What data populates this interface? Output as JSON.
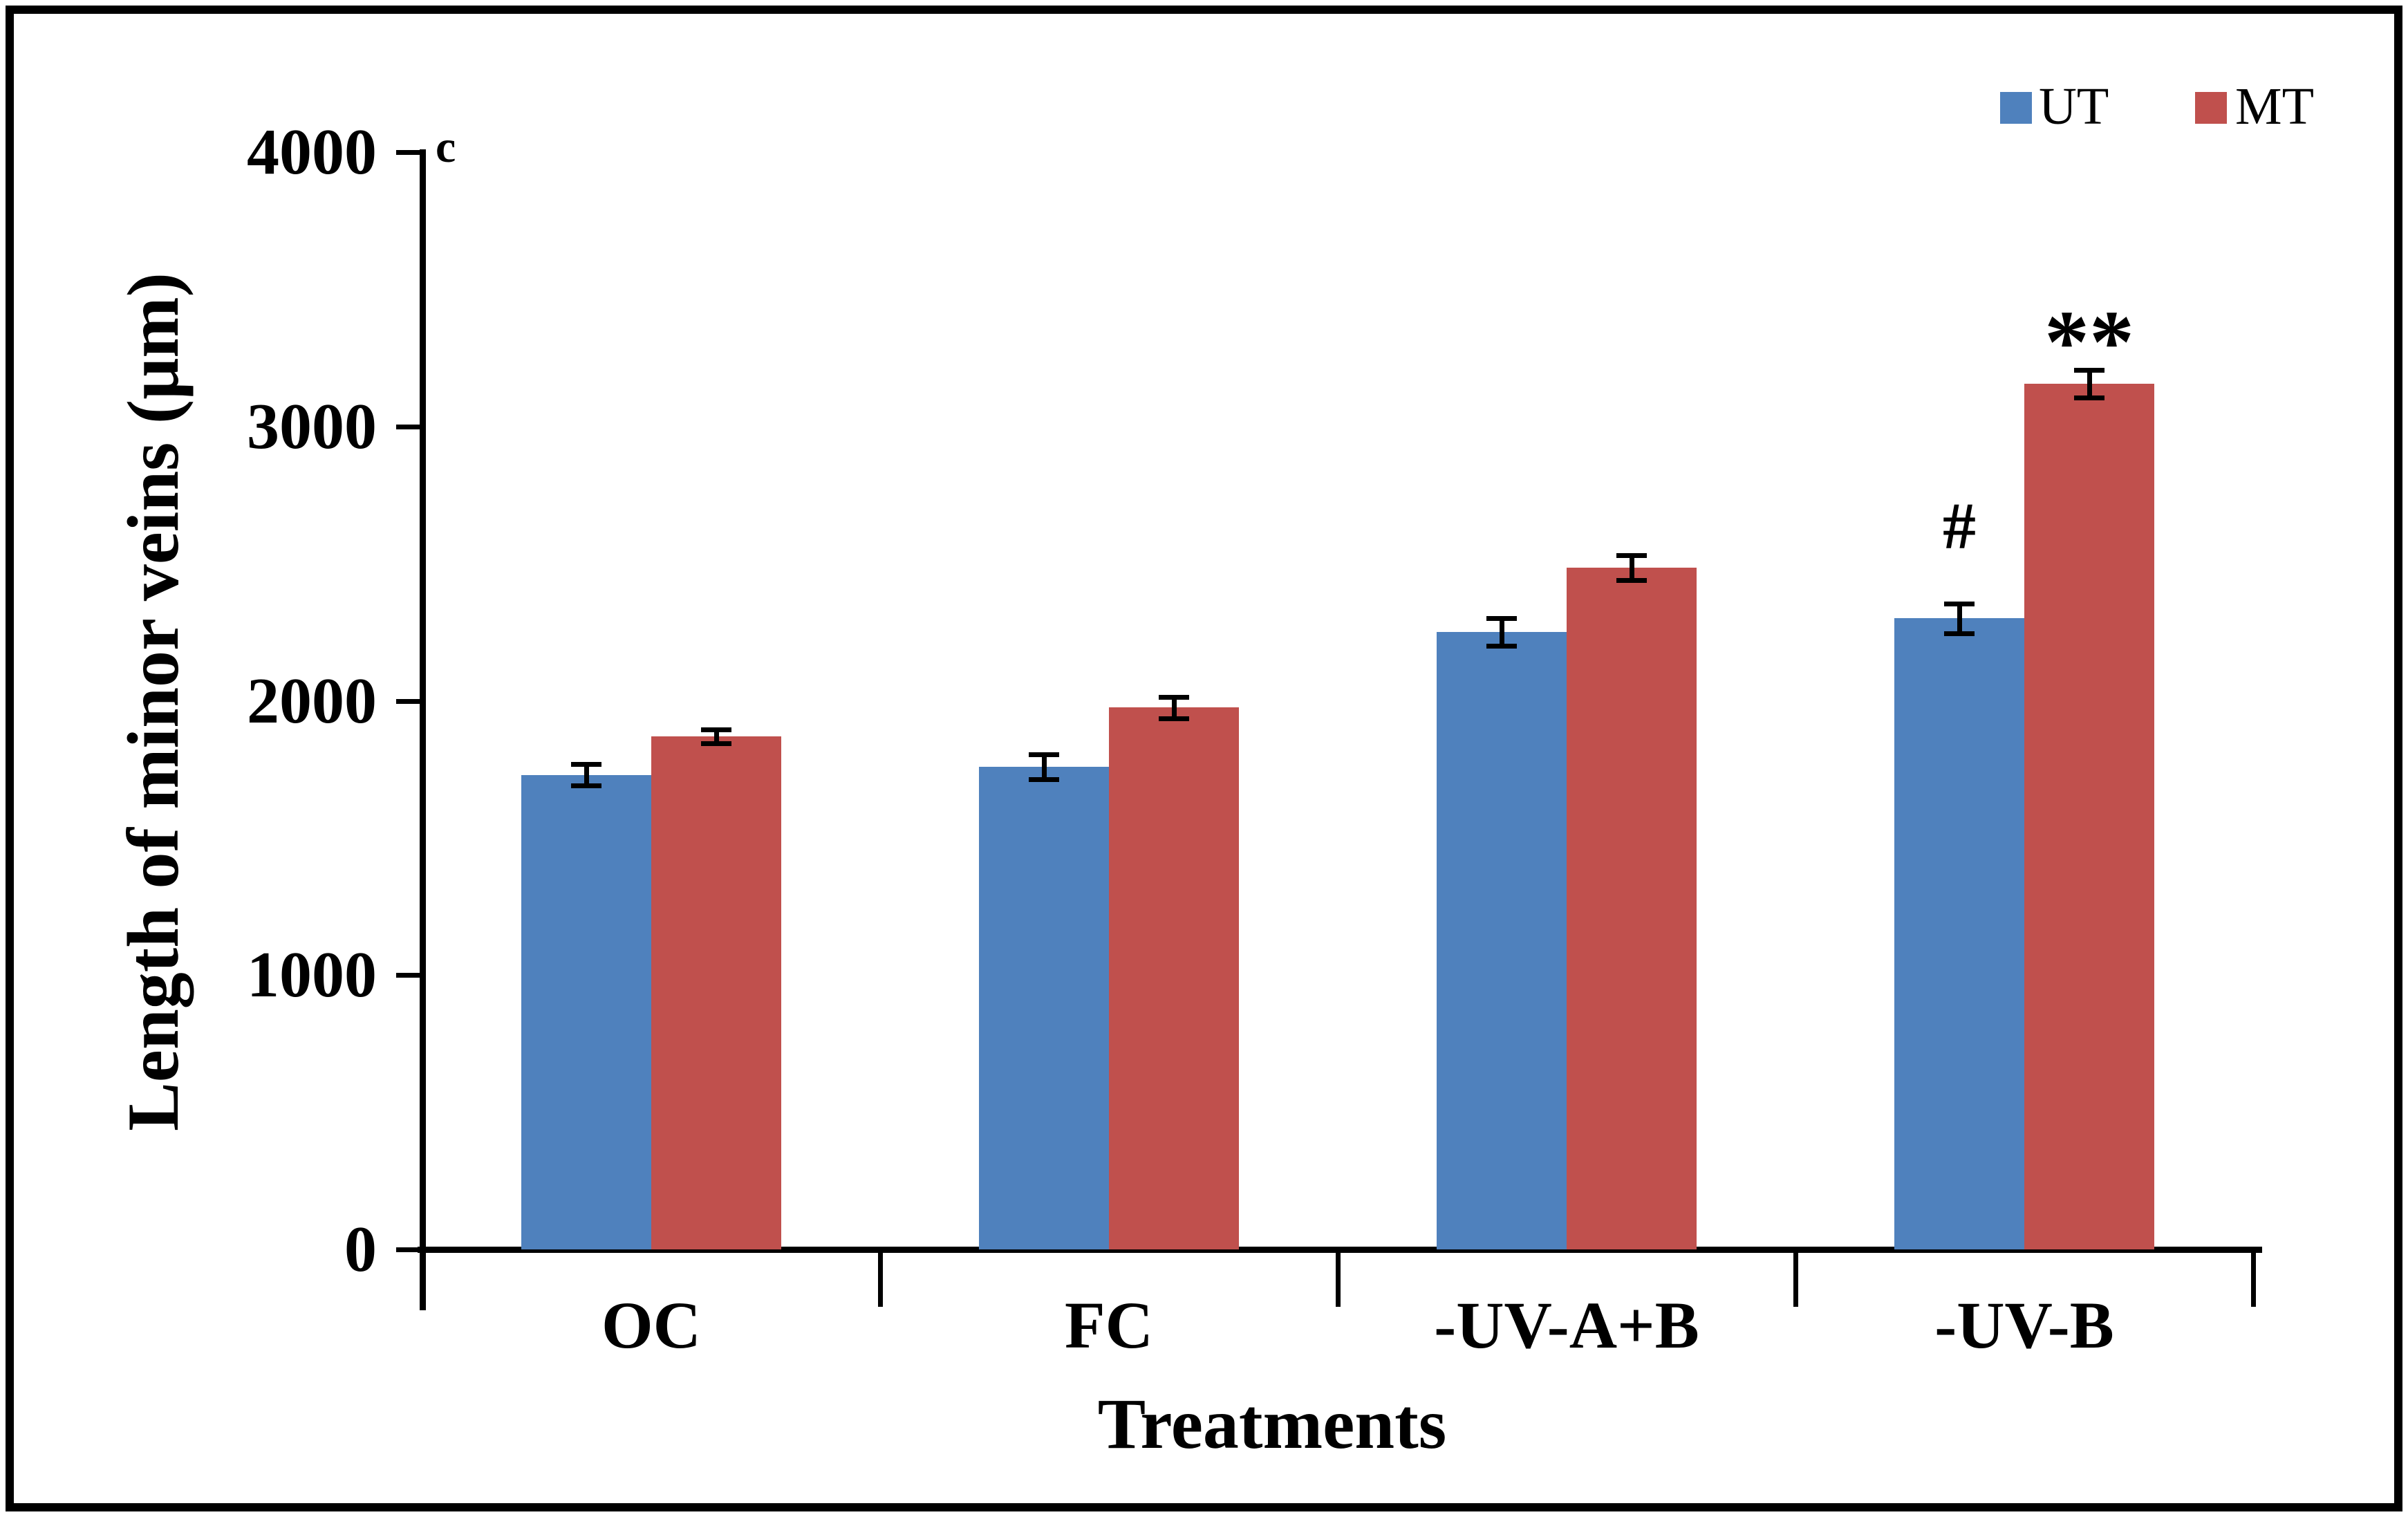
{
  "figure": {
    "panel_label": "c",
    "background": "#ffffff",
    "border_color": "#000000"
  },
  "legend": {
    "position": "top-right",
    "items": [
      {
        "label": "UT",
        "color": "#4F81BD"
      },
      {
        "label": "MT",
        "color": "#C0504D"
      }
    ]
  },
  "chart_data": {
    "type": "bar",
    "title": "",
    "xlabel": "Treatments",
    "ylabel": "Length of minor veins (μm)",
    "categories": [
      "OC",
      "FC",
      "-UV-A+B",
      "-UV-B"
    ],
    "series": [
      {
        "name": "UT",
        "color": "#4F81BD",
        "values": [
          1730,
          1760,
          2250,
          2300
        ],
        "errors": [
          40,
          45,
          50,
          55
        ]
      },
      {
        "name": "MT",
        "color": "#C0504D",
        "values": [
          1870,
          1975,
          2485,
          3155
        ],
        "errors": [
          25,
          40,
          45,
          50
        ]
      }
    ],
    "annotations": [
      {
        "category": "-UV-B",
        "series": "UT",
        "text": "#"
      },
      {
        "category": "-UV-B",
        "series": "MT",
        "text": "**"
      }
    ],
    "ylim": [
      0,
      4000
    ],
    "ytick_step": 1000,
    "yticks": [
      "0",
      "1000",
      "2000",
      "3000",
      "4000"
    ],
    "grid": false,
    "error_bar_color": "#000000"
  }
}
